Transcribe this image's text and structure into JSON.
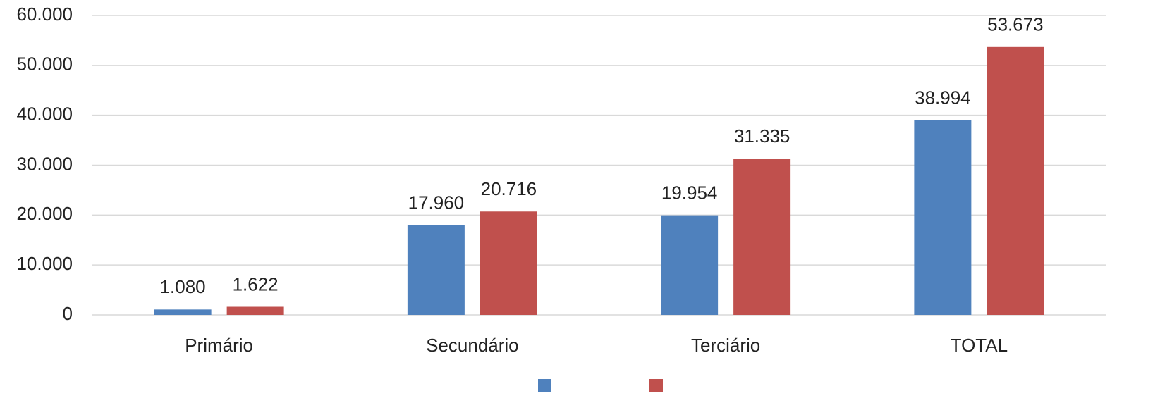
{
  "chart_data": {
    "type": "bar",
    "categories": [
      "Primário",
      "Secundário",
      "Terciário",
      "TOTAL"
    ],
    "series": [
      {
        "color": "#4f81bd",
        "values": [
          1080,
          17960,
          19954,
          38994
        ],
        "value_labels": [
          "1.080",
          "17.960",
          "19.954",
          "38.994"
        ]
      },
      {
        "color": "#c0504d",
        "values": [
          1622,
          20716,
          31335,
          53673
        ],
        "value_labels": [
          "1.622",
          "20.716",
          "31.335",
          "53.673"
        ]
      }
    ],
    "ylim": [
      0,
      60000
    ],
    "yticks": [
      0,
      {
        "value": 10000,
        "label": "10.000"
      },
      {
        "value": 20000,
        "label": "20.000"
      },
      {
        "value": 30000,
        "label": "30.000"
      },
      {
        "value": 40000,
        "label": "40.000"
      },
      {
        "value": 50000,
        "label": "50.000"
      },
      {
        "value": 60000,
        "label": "60.000"
      }
    ],
    "grid": true
  }
}
